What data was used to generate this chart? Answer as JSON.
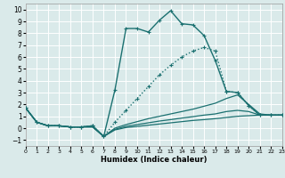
{
  "xlabel": "Humidex (Indice chaleur)",
  "bg_color": "#daeaea",
  "grid_color": "#ffffff",
  "line_color": "#1a7070",
  "xlim": [
    0,
    23
  ],
  "ylim": [
    -1.5,
    10.5
  ],
  "xticks": [
    0,
    1,
    2,
    3,
    4,
    5,
    6,
    7,
    8,
    9,
    10,
    11,
    12,
    13,
    14,
    15,
    16,
    17,
    18,
    19,
    20,
    21,
    22,
    23
  ],
  "yticks": [
    -1,
    0,
    1,
    2,
    3,
    4,
    5,
    6,
    7,
    8,
    9,
    10
  ],
  "curves": [
    {
      "x": [
        0,
        1,
        2,
        3,
        4,
        5,
        6,
        7,
        8,
        9,
        10,
        11,
        12,
        13,
        14,
        15,
        16,
        17,
        18,
        19,
        20,
        21,
        22,
        23
      ],
      "y": [
        1.7,
        0.5,
        0.2,
        0.2,
        0.1,
        0.1,
        0.2,
        -0.7,
        3.2,
        8.4,
        8.4,
        8.1,
        9.1,
        9.9,
        8.8,
        8.7,
        7.8,
        5.7,
        3.1,
        3.0,
        1.9,
        1.1,
        1.1,
        1.1
      ],
      "marker": true,
      "linestyle": "-"
    },
    {
      "x": [
        0,
        1,
        2,
        3,
        4,
        5,
        6,
        7,
        8,
        9,
        10,
        11,
        12,
        13,
        14,
        15,
        16,
        17,
        18,
        19,
        20,
        21,
        22,
        23
      ],
      "y": [
        1.7,
        0.5,
        0.2,
        0.2,
        0.1,
        0.1,
        0.2,
        -0.7,
        0.5,
        1.5,
        2.5,
        3.5,
        4.5,
        5.3,
        6.0,
        6.5,
        6.8,
        6.5,
        3.1,
        3.0,
        1.9,
        1.1,
        1.1,
        1.1
      ],
      "marker": true,
      "linestyle": ":"
    },
    {
      "x": [
        0,
        1,
        2,
        3,
        4,
        5,
        6,
        7,
        8,
        9,
        10,
        11,
        12,
        13,
        14,
        15,
        16,
        17,
        18,
        19,
        20,
        21,
        22,
        23
      ],
      "y": [
        1.7,
        0.5,
        0.2,
        0.2,
        0.1,
        0.1,
        0.2,
        -0.7,
        0.0,
        0.3,
        0.55,
        0.8,
        1.0,
        1.2,
        1.4,
        1.6,
        1.85,
        2.1,
        2.5,
        2.8,
        2.0,
        1.2,
        1.1,
        1.1
      ],
      "marker": false,
      "linestyle": "-"
    },
    {
      "x": [
        0,
        1,
        2,
        3,
        4,
        5,
        6,
        7,
        8,
        9,
        10,
        11,
        12,
        13,
        14,
        15,
        16,
        17,
        18,
        19,
        20,
        21,
        22,
        23
      ],
      "y": [
        1.7,
        0.5,
        0.2,
        0.2,
        0.1,
        0.1,
        0.1,
        -0.7,
        -0.1,
        0.15,
        0.3,
        0.45,
        0.6,
        0.72,
        0.85,
        0.97,
        1.1,
        1.2,
        1.4,
        1.5,
        1.4,
        1.1,
        1.1,
        1.1
      ],
      "marker": false,
      "linestyle": "-"
    },
    {
      "x": [
        0,
        1,
        2,
        3,
        4,
        5,
        6,
        7,
        8,
        9,
        10,
        11,
        12,
        13,
        14,
        15,
        16,
        17,
        18,
        19,
        20,
        21,
        22,
        23
      ],
      "y": [
        1.7,
        0.5,
        0.2,
        0.2,
        0.1,
        0.1,
        0.1,
        -0.7,
        -0.15,
        0.05,
        0.15,
        0.25,
        0.35,
        0.45,
        0.55,
        0.65,
        0.72,
        0.8,
        0.9,
        1.0,
        1.05,
        1.1,
        1.1,
        1.1
      ],
      "marker": false,
      "linestyle": "-"
    }
  ]
}
